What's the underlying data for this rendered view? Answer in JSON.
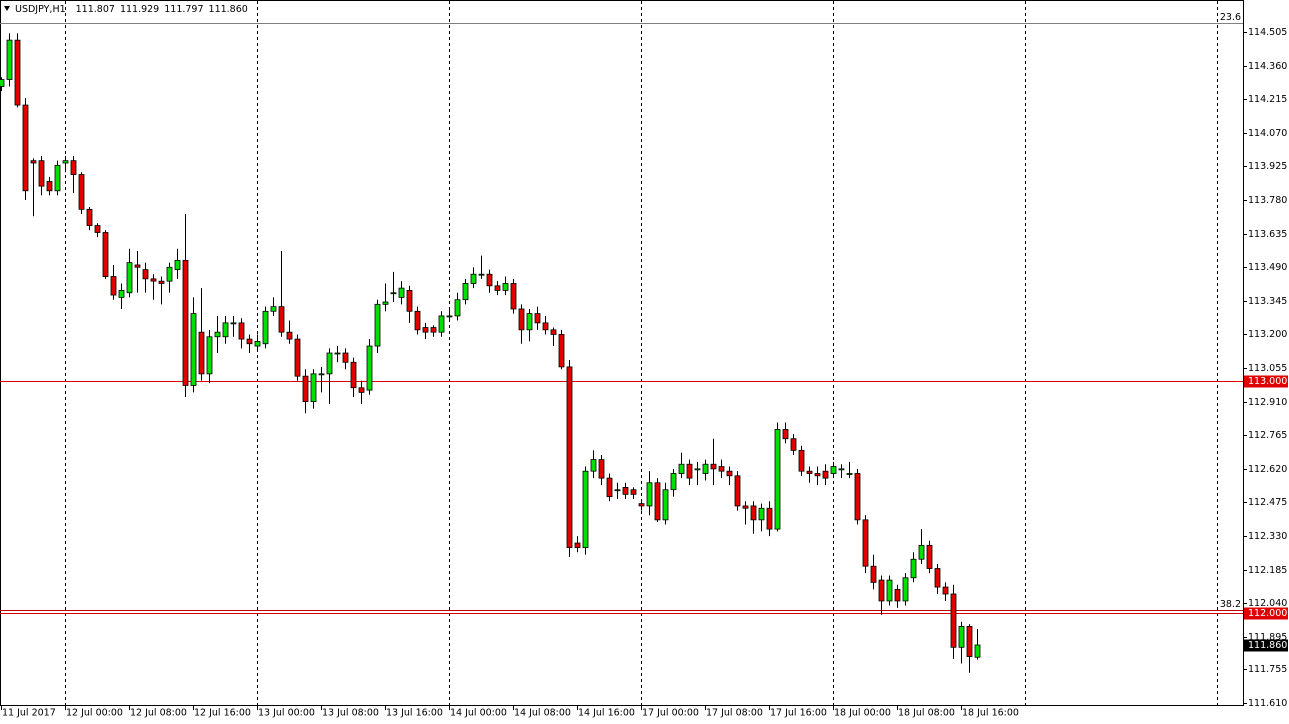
{
  "chart_data": {
    "type": "candlestick",
    "symbol": "USDJPY,H1",
    "header_values": [
      "111.807",
      "111.929",
      "111.797",
      "111.860"
    ],
    "categories": [
      "11 Jul 2017",
      null,
      null,
      null,
      null,
      null,
      null,
      null,
      "12 Jul 00:00",
      null,
      null,
      null,
      null,
      null,
      null,
      null,
      "12 Jul 08:00",
      null,
      null,
      null,
      null,
      null,
      null,
      null,
      "12 Jul 16:00",
      null,
      null,
      null,
      null,
      null,
      null,
      null,
      "13 Jul 00:00",
      null,
      null,
      null,
      null,
      null,
      null,
      null,
      "13 Jul 08:00",
      null,
      null,
      null,
      null,
      null,
      null,
      null,
      "13 Jul 16:00",
      null,
      null,
      null,
      null,
      null,
      null,
      null,
      "14 Jul 00:00",
      null,
      null,
      null,
      null,
      null,
      null,
      null,
      "14 Jul 08:00",
      null,
      null,
      null,
      null,
      null,
      null,
      null,
      "14 Jul 16:00",
      null,
      null,
      null,
      null,
      null,
      null,
      null,
      "17 Jul 00:00",
      null,
      null,
      null,
      null,
      null,
      null,
      null,
      "17 Jul 08:00",
      null,
      null,
      null,
      null,
      null,
      null,
      null,
      "17 Jul 16:00",
      null,
      null,
      null,
      null,
      null,
      null,
      null,
      "18 Jul 00:00",
      null,
      null,
      null,
      null,
      null,
      null,
      null,
      "18 Jul 08:00",
      null,
      null,
      null,
      null,
      null,
      null,
      null,
      "18 Jul 16:00",
      null,
      null
    ],
    "open": [
      114.27,
      114.3,
      114.47,
      114.19,
      113.95,
      113.95,
      113.86,
      113.82,
      113.94,
      113.95,
      113.89,
      113.74,
      113.67,
      113.64,
      113.45,
      113.36,
      113.38,
      113.5,
      113.48,
      113.44,
      113.43,
      113.43,
      113.48,
      113.52,
      112.98,
      113.21,
      113.03,
      113.19,
      113.19,
      113.25,
      113.25,
      113.18,
      113.15,
      113.16,
      113.3,
      113.32,
      113.21,
      113.18,
      113.02,
      112.91,
      113.03,
      113.03,
      113.12,
      113.12,
      113.08,
      112.97,
      112.96,
      113.15,
      113.33,
      113.38,
      113.36,
      113.39,
      113.3,
      113.23,
      113.23,
      113.21,
      113.28,
      113.28,
      113.35,
      113.42,
      113.46,
      113.46,
      113.41,
      113.39,
      113.42,
      113.31,
      113.22,
      113.29,
      113.25,
      113.22,
      113.2,
      113.06,
      112.3,
      112.28,
      112.61,
      112.66,
      112.58,
      112.53,
      112.54,
      112.53,
      112.47,
      112.46,
      112.56,
      112.4,
      112.53,
      112.6,
      112.64,
      112.62,
      112.6,
      112.64,
      112.63,
      112.61,
      112.59,
      112.46,
      112.46,
      112.4,
      112.45,
      112.36,
      112.79,
      112.75,
      112.7,
      112.61,
      112.6,
      112.61,
      112.6,
      112.62,
      112.6,
      112.6,
      112.4,
      112.2,
      112.14,
      112.05,
      112.1,
      112.05,
      112.15,
      112.23,
      112.29,
      112.19,
      112.11,
      112.08,
      111.85,
      111.94,
      111.807
    ],
    "high": [
      114.31,
      114.5,
      114.5,
      114.22,
      113.96,
      113.97,
      113.88,
      113.95,
      113.97,
      113.97,
      113.9,
      113.75,
      113.68,
      113.65,
      113.5,
      113.42,
      113.57,
      113.56,
      113.51,
      113.46,
      113.45,
      113.51,
      113.57,
      113.72,
      113.36,
      113.4,
      113.22,
      113.28,
      113.28,
      113.28,
      113.27,
      113.2,
      113.2,
      113.32,
      113.36,
      113.56,
      113.26,
      113.2,
      113.05,
      113.05,
      113.06,
      113.14,
      113.15,
      113.14,
      113.1,
      113.0,
      113.18,
      113.35,
      113.42,
      113.47,
      113.43,
      113.41,
      113.32,
      113.25,
      113.24,
      113.3,
      113.31,
      113.38,
      113.44,
      113.49,
      113.54,
      113.48,
      113.43,
      113.45,
      113.44,
      113.33,
      113.31,
      113.32,
      113.28,
      113.23,
      113.22,
      113.09,
      112.33,
      112.63,
      112.7,
      112.68,
      112.6,
      112.56,
      112.56,
      112.54,
      112.49,
      112.61,
      112.58,
      112.56,
      112.62,
      112.69,
      112.66,
      112.65,
      112.66,
      112.75,
      112.66,
      112.63,
      112.61,
      112.48,
      112.48,
      112.47,
      112.48,
      112.82,
      112.82,
      112.77,
      112.72,
      112.63,
      112.63,
      112.64,
      112.65,
      112.64,
      112.65,
      112.62,
      112.42,
      112.25,
      112.16,
      112.16,
      112.12,
      112.17,
      112.26,
      112.36,
      112.31,
      112.21,
      112.13,
      112.12,
      111.96,
      111.95,
      111.929
    ],
    "low": [
      114.25,
      114.27,
      114.18,
      113.78,
      113.71,
      113.8,
      113.8,
      113.8,
      113.9,
      113.81,
      113.72,
      113.65,
      113.62,
      113.44,
      113.35,
      113.31,
      113.36,
      113.38,
      113.38,
      113.35,
      113.33,
      113.38,
      113.44,
      112.93,
      112.95,
      113.0,
      112.99,
      113.12,
      113.16,
      113.19,
      113.14,
      113.12,
      113.13,
      113.14,
      113.28,
      113.19,
      113.16,
      113.0,
      112.86,
      112.88,
      112.95,
      112.9,
      113.08,
      113.05,
      112.93,
      112.9,
      112.94,
      113.12,
      113.3,
      113.34,
      113.33,
      113.25,
      113.2,
      113.18,
      113.19,
      113.19,
      113.26,
      113.26,
      113.33,
      113.4,
      113.44,
      113.38,
      113.37,
      113.37,
      113.29,
      113.16,
      113.17,
      113.22,
      113.2,
      113.15,
      113.05,
      112.24,
      112.26,
      112.25,
      112.58,
      112.55,
      112.48,
      112.49,
      112.49,
      112.49,
      112.44,
      112.42,
      112.39,
      112.38,
      112.5,
      112.58,
      112.55,
      112.55,
      112.57,
      112.55,
      112.58,
      112.55,
      112.44,
      112.38,
      112.34,
      112.35,
      112.33,
      112.35,
      112.73,
      112.68,
      112.59,
      112.56,
      112.55,
      112.55,
      112.58,
      112.58,
      112.58,
      112.38,
      112.17,
      112.1,
      111.99,
      112.03,
      112.02,
      112.03,
      112.13,
      112.21,
      112.17,
      112.08,
      112.05,
      111.8,
      111.78,
      111.74,
      111.797
    ],
    "close": [
      114.3,
      114.47,
      114.19,
      113.82,
      113.94,
      113.84,
      113.82,
      113.93,
      113.95,
      113.89,
      113.74,
      113.67,
      113.64,
      113.45,
      113.37,
      113.39,
      113.51,
      113.49,
      113.44,
      113.43,
      113.42,
      113.49,
      113.52,
      112.98,
      113.29,
      113.03,
      113.19,
      113.21,
      113.25,
      113.25,
      113.18,
      113.16,
      113.17,
      113.3,
      113.32,
      113.21,
      113.18,
      113.02,
      112.91,
      113.03,
      113.03,
      113.12,
      113.12,
      113.08,
      112.97,
      112.95,
      113.15,
      113.33,
      113.34,
      113.38,
      113.4,
      113.3,
      113.22,
      113.21,
      113.21,
      113.28,
      113.28,
      113.35,
      113.42,
      113.46,
      113.46,
      113.41,
      113.39,
      113.42,
      113.31,
      113.22,
      113.29,
      113.25,
      113.22,
      113.2,
      113.06,
      112.28,
      112.28,
      112.61,
      112.66,
      112.58,
      112.5,
      112.53,
      112.51,
      112.51,
      112.46,
      112.56,
      112.4,
      112.53,
      112.6,
      112.64,
      112.58,
      112.62,
      112.64,
      112.62,
      112.61,
      112.59,
      112.46,
      112.45,
      112.4,
      112.45,
      112.36,
      112.79,
      112.75,
      112.7,
      112.61,
      112.6,
      112.59,
      112.58,
      112.63,
      112.62,
      112.6,
      112.4,
      112.2,
      112.13,
      112.05,
      112.14,
      112.05,
      112.15,
      112.23,
      112.29,
      112.19,
      112.11,
      112.08,
      111.85,
      111.94,
      111.81,
      111.86
    ],
    "up_color": "#00e000",
    "down_color": "#e00000",
    "ylim": [
      111.601,
      114.639
    ],
    "yticks": [
      {
        "value": 114.505,
        "label": "114.505"
      },
      {
        "value": 114.36,
        "label": "114.360"
      },
      {
        "value": 114.215,
        "label": "114.215"
      },
      {
        "value": 114.07,
        "label": "114.070"
      },
      {
        "value": 113.925,
        "label": "113.925"
      },
      {
        "value": 113.78,
        "label": "113.780"
      },
      {
        "value": 113.635,
        "label": "113.635"
      },
      {
        "value": 113.49,
        "label": "113.490"
      },
      {
        "value": 113.345,
        "label": "113.345"
      },
      {
        "value": 113.2,
        "label": "113.200"
      },
      {
        "value": 113.055,
        "label": "113.055"
      },
      {
        "value": 112.91,
        "label": "112.910"
      },
      {
        "value": 112.765,
        "label": "112.765"
      },
      {
        "value": 112.62,
        "label": "112.620"
      },
      {
        "value": 112.475,
        "label": "112.475"
      },
      {
        "value": 112.33,
        "label": "112.330"
      },
      {
        "value": 112.185,
        "label": "112.185"
      },
      {
        "value": 112.04,
        "label": "112.040"
      },
      {
        "value": 111.895,
        "label": "111.895"
      },
      {
        "value": 111.755,
        "label": "111.755"
      },
      {
        "value": 111.61,
        "label": "111.610"
      }
    ],
    "levels": [
      {
        "value": 113.0,
        "label": "113.000",
        "color": "#e00000"
      },
      {
        "value": 112.0,
        "label": "112.000",
        "color": "#e00000"
      }
    ],
    "fib_levels": [
      {
        "ratio": 23.6,
        "price": 114.544,
        "color": "#808080"
      },
      {
        "ratio": 38.2,
        "price": 112.01,
        "color": "#c00000"
      }
    ],
    "current_price": {
      "value": 111.86,
      "label": "111.860"
    }
  }
}
